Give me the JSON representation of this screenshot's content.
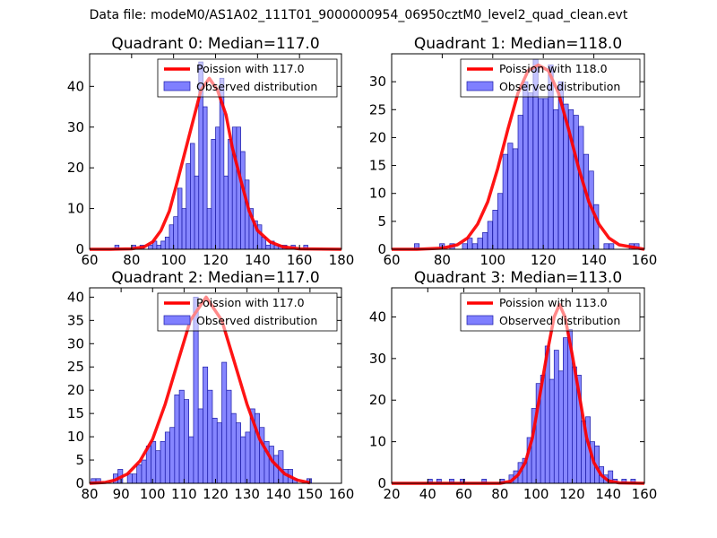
{
  "figure": {
    "suptitle": "Data file: modeM0/AS1A02_111T01_9000000954_06950cztM0_level2_quad_clean.evt"
  },
  "colors": {
    "bar_fill": "#7f7fff",
    "bar_edge": "#1a1aa6",
    "curve": "#ff0000"
  },
  "chart_data": [
    {
      "type": "bar",
      "title": "Quadrant 0: Median=117.0",
      "xlim": [
        60,
        180
      ],
      "ylim": [
        0,
        48
      ],
      "xticks": [
        "60",
        "80",
        "100",
        "120",
        "140",
        "160",
        "180"
      ],
      "yticks": [
        "0",
        "10",
        "20",
        "30",
        "40"
      ],
      "legend": {
        "placement": "top-right",
        "entries": [
          "Poission with 117.0",
          "Observed distribution"
        ]
      },
      "median": 117.0,
      "bin_width": 2,
      "hist_x": [
        72,
        80,
        84,
        88,
        90,
        92,
        94,
        96,
        98,
        100,
        102,
        104,
        106,
        108,
        110,
        112,
        114,
        116,
        118,
        120,
        122,
        124,
        126,
        128,
        130,
        132,
        134,
        136,
        138,
        140,
        142,
        144,
        146,
        148,
        150,
        152,
        156,
        162
      ],
      "hist_y": [
        1,
        1,
        1,
        1,
        2,
        1,
        2,
        3,
        6,
        8,
        15,
        10,
        21,
        26,
        18,
        46,
        35,
        10,
        27,
        30,
        42,
        18,
        27,
        30,
        30,
        24,
        17,
        10,
        7,
        6,
        3,
        1,
        2,
        1,
        1,
        1,
        1,
        1
      ],
      "poisson_x": [
        60,
        70,
        80,
        86,
        90,
        94,
        98,
        102,
        106,
        110,
        113,
        117,
        121,
        125,
        128,
        132,
        136,
        140,
        146,
        152,
        160,
        180
      ],
      "poisson_y": [
        0,
        0,
        0.1,
        0.6,
        1.8,
        4.6,
        9.4,
        17,
        25,
        33,
        39,
        42,
        39,
        33,
        25,
        17,
        9.4,
        4.6,
        1.8,
        0.6,
        0.1,
        0
      ]
    },
    {
      "type": "bar",
      "title": "Quadrant 1: Median=118.0",
      "xlim": [
        60,
        160
      ],
      "ylim": [
        0,
        35
      ],
      "xticks": [
        "60",
        "80",
        "100",
        "120",
        "140",
        "160"
      ],
      "yticks": [
        "0",
        "5",
        "10",
        "15",
        "20",
        "25",
        "30"
      ],
      "legend": {
        "placement": "top-right",
        "entries": [
          "Poission with 118.0",
          "Observed distribution"
        ]
      },
      "median": 118.0,
      "bin_width": 1.9,
      "hist_x": [
        69,
        79,
        83,
        88,
        90,
        92,
        94,
        96,
        98,
        100,
        102,
        104,
        106,
        108,
        110,
        112,
        114,
        116,
        118,
        120,
        122,
        124,
        126,
        128,
        130,
        132,
        134,
        136,
        138,
        140,
        144,
        146,
        154,
        156
      ],
      "hist_y": [
        1,
        1,
        1,
        1,
        2,
        1,
        2,
        3,
        5,
        7,
        10,
        17,
        19,
        18,
        24,
        30,
        28,
        34,
        27,
        27,
        33,
        25,
        30,
        26,
        25,
        24,
        22,
        17,
        14,
        8,
        1,
        1,
        1,
        1
      ],
      "poisson_x": [
        60,
        70,
        80,
        86,
        90,
        94,
        98,
        102,
        106,
        110,
        114,
        118,
        122,
        126,
        130,
        134,
        138,
        142,
        146,
        150,
        160
      ],
      "poisson_y": [
        0,
        0,
        0.2,
        0.8,
        2,
        4.5,
        8.5,
        14.5,
        21.5,
        28,
        32,
        33,
        32,
        28,
        21.5,
        14.5,
        8.5,
        4.5,
        2,
        0.8,
        0
      ]
    },
    {
      "type": "bar",
      "title": "Quadrant 2: Median=117.0",
      "xlim": [
        80,
        160
      ],
      "ylim": [
        0,
        42
      ],
      "xticks": [
        "80",
        "90",
        "100",
        "110",
        "120",
        "130",
        "140",
        "150",
        "160"
      ],
      "yticks": [
        "0",
        "5",
        "10",
        "15",
        "20",
        "25",
        "30",
        "35",
        "40"
      ],
      "legend": {
        "placement": "top-right",
        "entries": [
          "Poission with 117.0",
          "Observed distribution"
        ]
      },
      "median": 117.0,
      "bin_width": 1.5,
      "hist_x": [
        80.5,
        82,
        87.5,
        89,
        92,
        93.5,
        95,
        96.5,
        98,
        99.5,
        101,
        102.5,
        104,
        105.5,
        107,
        108.5,
        110,
        111.5,
        113,
        114.5,
        116,
        117.5,
        119,
        120.5,
        122,
        123.5,
        125,
        126.5,
        128,
        129.5,
        131,
        132.5,
        134,
        135.5,
        137,
        138.5,
        140,
        141.5,
        143,
        144.5,
        149
      ],
      "hist_y": [
        1,
        1,
        2,
        3,
        2,
        2,
        4,
        5,
        8,
        9,
        7,
        9,
        11,
        12,
        19,
        20,
        18,
        10,
        40,
        16,
        25,
        20,
        14,
        13,
        26,
        20,
        15,
        13,
        10,
        11,
        16,
        15,
        12,
        9,
        8,
        6,
        7,
        3,
        3,
        1,
        1
      ],
      "poisson_x": [
        80,
        85,
        88,
        92,
        96,
        100,
        104,
        108,
        112,
        117,
        122,
        126,
        130,
        134,
        138,
        142,
        146,
        150
      ],
      "poisson_y": [
        0,
        0.2,
        0.7,
        2,
        4.8,
        9.5,
        17,
        26,
        35,
        40,
        35,
        26,
        17,
        9.5,
        4.8,
        2,
        0.7,
        0.1
      ]
    },
    {
      "type": "bar",
      "title": "Quadrant 3: Median=113.0",
      "xlim": [
        20,
        160
      ],
      "ylim": [
        0,
        47
      ],
      "xticks": [
        "20",
        "40",
        "60",
        "80",
        "100",
        "120",
        "140",
        "160"
      ],
      "yticks": [
        "0",
        "10",
        "20",
        "30",
        "40"
      ],
      "legend": {
        "placement": "top-right",
        "entries": [
          "Poission with 113.0",
          "Observed distribution"
        ]
      },
      "median": 113.0,
      "bin_width": 2.5,
      "hist_x": [
        40,
        45,
        52,
        58,
        70,
        80,
        85,
        87.5,
        90,
        92.5,
        95,
        97.5,
        100,
        102.5,
        105,
        107.5,
        110,
        112.5,
        115,
        117.5,
        120,
        122.5,
        125,
        127.5,
        130,
        132.5,
        135,
        137.5,
        140,
        142.5,
        147.5,
        152.5
      ],
      "hist_y": [
        1,
        1,
        1,
        1,
        1,
        1,
        2,
        3,
        5,
        6,
        11,
        18,
        24,
        26,
        33,
        25,
        32,
        27,
        35,
        37,
        28,
        26,
        15,
        16,
        10,
        9,
        4,
        2,
        3,
        1,
        1,
        1
      ],
      "poisson_x": [
        20,
        60,
        80,
        86,
        90,
        94,
        98,
        102,
        106,
        110,
        113,
        116,
        120,
        124,
        128,
        132,
        136,
        140,
        146,
        160
      ],
      "poisson_y": [
        0,
        0,
        0,
        0.5,
        2,
        5,
        11,
        21,
        31,
        40,
        43,
        40,
        31,
        21,
        11,
        5,
        2,
        0.6,
        0.1,
        0
      ]
    }
  ]
}
